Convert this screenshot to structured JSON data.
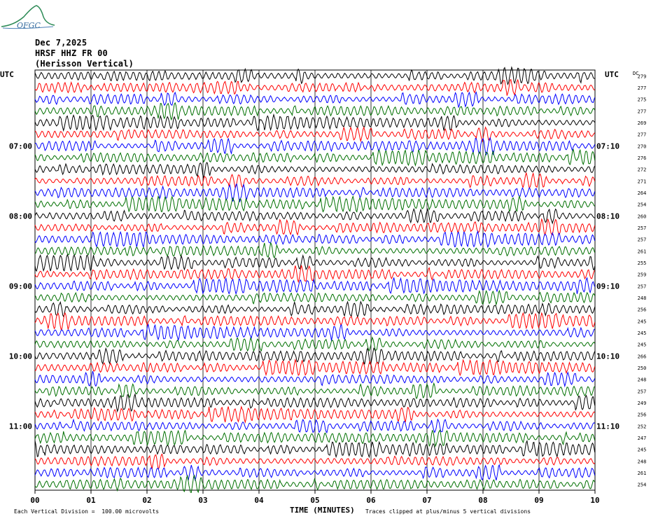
{
  "header": {
    "logo_text": "OFGC",
    "date": "Dec 7,2025",
    "station": "HRSF HHZ FR 00",
    "location": "(Herisson Vertical)"
  },
  "chart_data": {
    "type": "line",
    "title": "",
    "xlabel": "TIME (MINUTES)",
    "ylabel": "UTC",
    "right_axis_label": "UTC",
    "dc_label": "DC",
    "xlim": [
      0,
      10
    ],
    "x_ticks": [
      "00",
      "01",
      "02",
      "03",
      "04",
      "05",
      "06",
      "07",
      "08",
      "09",
      "10"
    ],
    "left_hour_labels": [
      {
        "row": 6,
        "label": "07:00"
      },
      {
        "row": 12,
        "label": "08:00"
      },
      {
        "row": 18,
        "label": "09:00"
      },
      {
        "row": 24,
        "label": "10:00"
      },
      {
        "row": 30,
        "label": "11:00"
      }
    ],
    "right_hour_labels": [
      {
        "row": 6,
        "label": "07:10"
      },
      {
        "row": 12,
        "label": "08:10"
      },
      {
        "row": 18,
        "label": "09:10"
      },
      {
        "row": 24,
        "label": "10:10"
      },
      {
        "row": 30,
        "label": "11:10"
      }
    ],
    "trace_colors": [
      "#000000",
      "#ff0000",
      "#0000ff",
      "#007000"
    ],
    "dc_offsets": [
      279,
      277,
      275,
      277,
      269,
      277,
      270,
      276,
      272,
      271,
      264,
      254,
      260,
      257,
      257,
      261,
      255,
      259,
      257,
      248,
      256,
      245,
      245,
      245,
      266,
      250,
      248,
      257,
      249,
      256,
      252,
      247,
      245,
      248,
      261,
      254
    ],
    "footer_left": "Each Vertical Division =  100.00 microvolts",
    "footer_right": "Traces clipped at plus/minus 5 vertical divisions"
  }
}
